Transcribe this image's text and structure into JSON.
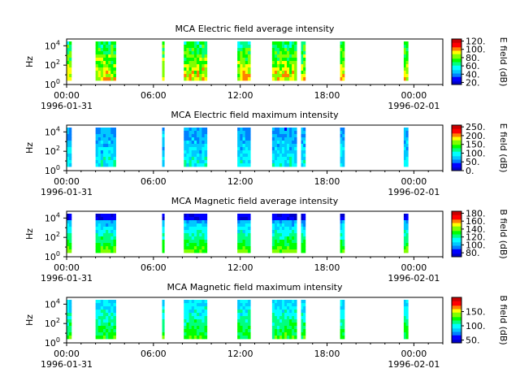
{
  "chart_data": [
    {
      "type": "heatmap",
      "title": "MCA  Electric field average intensity",
      "ylabel": "Hz",
      "y_scale": "log",
      "y_ticks": [
        "10^0",
        "10^2",
        "10^4"
      ],
      "x_ticks": [
        {
          "time": "00:00",
          "date": "1996-01-31"
        },
        {
          "time": "06:00",
          "date": ""
        },
        {
          "time": "12:00",
          "date": ""
        },
        {
          "time": "18:00",
          "date": ""
        },
        {
          "time": "00:00",
          "date": "1996-02-01"
        }
      ],
      "colorbar_label": "E field (dB)",
      "colorbar_ticks": [
        "20.",
        "40.",
        "60.",
        "80.",
        "100.",
        "120."
      ],
      "colorbar_range": [
        15,
        125
      ],
      "data_intervals_hours": [
        [
          0.0,
          0.33
        ],
        [
          2.0,
          3.4
        ],
        [
          6.6,
          6.75
        ],
        [
          8.1,
          9.7
        ],
        [
          11.8,
          12.7
        ],
        [
          14.2,
          15.9
        ],
        [
          16.2,
          16.5
        ],
        [
          18.9,
          19.2
        ],
        [
          23.3,
          23.6
        ]
      ],
      "level_character": "high"
    },
    {
      "type": "heatmap",
      "title": "MCA  Electric field maximum intensity",
      "ylabel": "Hz",
      "y_scale": "log",
      "y_ticks": [
        "10^0",
        "10^2",
        "10^4"
      ],
      "x_ticks": [
        {
          "time": "00:00",
          "date": "1996-01-31"
        },
        {
          "time": "06:00",
          "date": ""
        },
        {
          "time": "12:00",
          "date": ""
        },
        {
          "time": "18:00",
          "date": ""
        },
        {
          "time": "00:00",
          "date": "1996-02-01"
        }
      ],
      "colorbar_label": "E field (dB)",
      "colorbar_ticks": [
        "0.",
        "50.",
        "100.",
        "150.",
        "200.",
        "250."
      ],
      "colorbar_range": [
        0,
        260
      ],
      "data_intervals_hours": [
        [
          0.0,
          0.33
        ],
        [
          2.0,
          3.4
        ],
        [
          6.6,
          6.75
        ],
        [
          8.1,
          9.7
        ],
        [
          11.8,
          12.7
        ],
        [
          14.2,
          15.9
        ],
        [
          16.2,
          16.5
        ],
        [
          18.9,
          19.2
        ],
        [
          23.3,
          23.6
        ]
      ],
      "level_character": "mid-low"
    },
    {
      "type": "heatmap",
      "title": "MCA  Magnetic field average intensity",
      "ylabel": "Hz",
      "y_scale": "log",
      "y_ticks": [
        "10^0",
        "10^2",
        "10^4"
      ],
      "x_ticks": [
        {
          "time": "00:00",
          "date": "1996-01-31"
        },
        {
          "time": "06:00",
          "date": ""
        },
        {
          "time": "12:00",
          "date": ""
        },
        {
          "time": "18:00",
          "date": ""
        },
        {
          "time": "00:00",
          "date": "1996-02-01"
        }
      ],
      "colorbar_label": "B field (dB)",
      "colorbar_ticks": [
        "80.",
        "100.",
        "120.",
        "140.",
        "160.",
        "180."
      ],
      "colorbar_range": [
        70,
        185
      ],
      "data_intervals_hours": [
        [
          0.0,
          0.33
        ],
        [
          2.0,
          3.4
        ],
        [
          6.6,
          6.75
        ],
        [
          8.1,
          9.7
        ],
        [
          11.8,
          12.7
        ],
        [
          14.2,
          15.9
        ],
        [
          16.2,
          16.5
        ],
        [
          18.9,
          19.2
        ],
        [
          23.3,
          23.6
        ]
      ],
      "level_character": "rising-to-low-freq"
    },
    {
      "type": "heatmap",
      "title": "MCA  Magnetic field maximum intensity",
      "ylabel": "Hz",
      "y_scale": "log",
      "y_ticks": [
        "10^0",
        "10^2",
        "10^4"
      ],
      "x_ticks": [
        {
          "time": "00:00",
          "date": "1996-01-31"
        },
        {
          "time": "06:00",
          "date": ""
        },
        {
          "time": "12:00",
          "date": ""
        },
        {
          "time": "18:00",
          "date": ""
        },
        {
          "time": "00:00",
          "date": "1996-02-01"
        }
      ],
      "colorbar_label": "B field (dB)",
      "colorbar_ticks": [
        "50.",
        "100.",
        "150."
      ],
      "colorbar_range": [
        40,
        200
      ],
      "data_intervals_hours": [
        [
          0.0,
          0.33
        ],
        [
          2.0,
          3.4
        ],
        [
          6.6,
          6.75
        ],
        [
          8.1,
          9.7
        ],
        [
          11.8,
          12.7
        ],
        [
          14.2,
          15.9
        ],
        [
          16.2,
          16.5
        ],
        [
          18.9,
          19.2
        ],
        [
          23.3,
          23.6
        ]
      ],
      "level_character": "mid"
    }
  ],
  "colormap": [
    "#0000c8",
    "#0000ff",
    "#0080ff",
    "#00c8ff",
    "#00ffff",
    "#00ff80",
    "#00ff00",
    "#80ff00",
    "#ffff00",
    "#ff8000",
    "#ff0000",
    "#c80000"
  ]
}
